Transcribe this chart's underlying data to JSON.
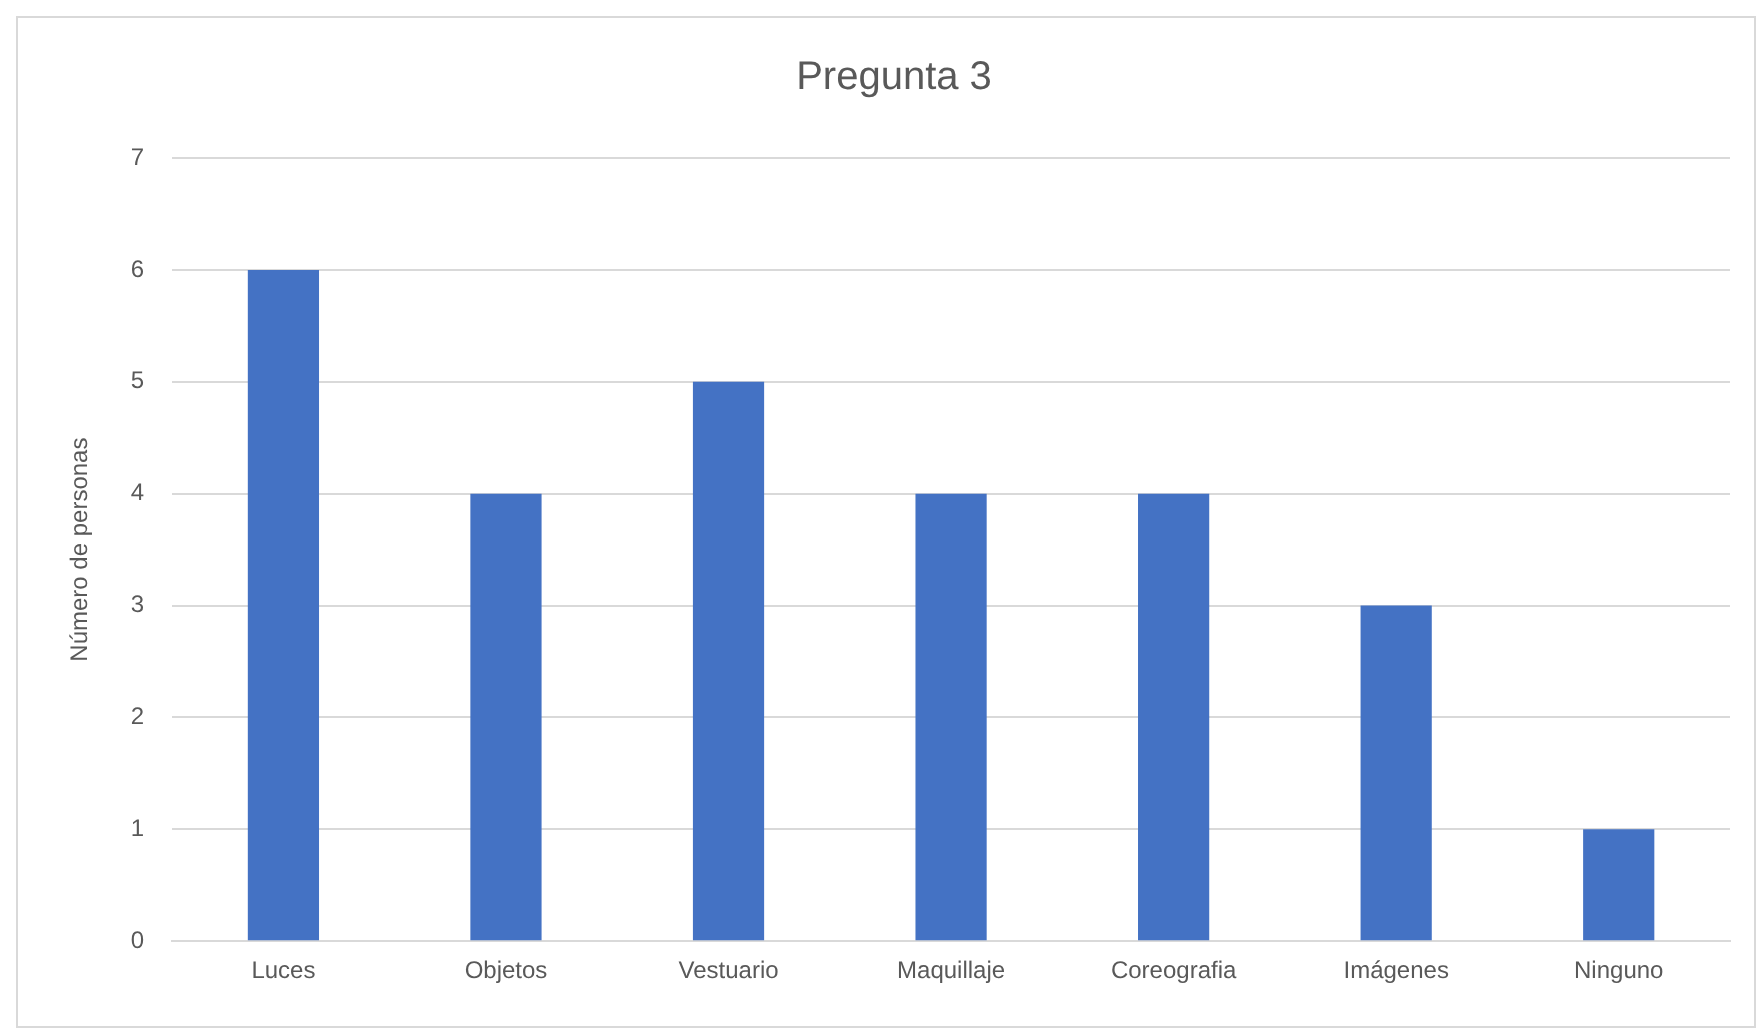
{
  "chart_data": {
    "type": "bar",
    "title": "Pregunta 3",
    "ylabel": "Número de personas",
    "categories": [
      "Luces",
      "Objetos",
      "Vestuario",
      "Maquillaje",
      "Coreografia",
      "Imágenes",
      "Ninguno"
    ],
    "values": [
      6,
      4,
      5,
      4,
      4,
      3,
      1
    ],
    "color": "#4472c4",
    "ylim": [
      0,
      7
    ],
    "yticks": [
      0,
      1,
      2,
      3,
      4,
      5,
      6,
      7
    ],
    "grid": "y",
    "legend": false
  }
}
